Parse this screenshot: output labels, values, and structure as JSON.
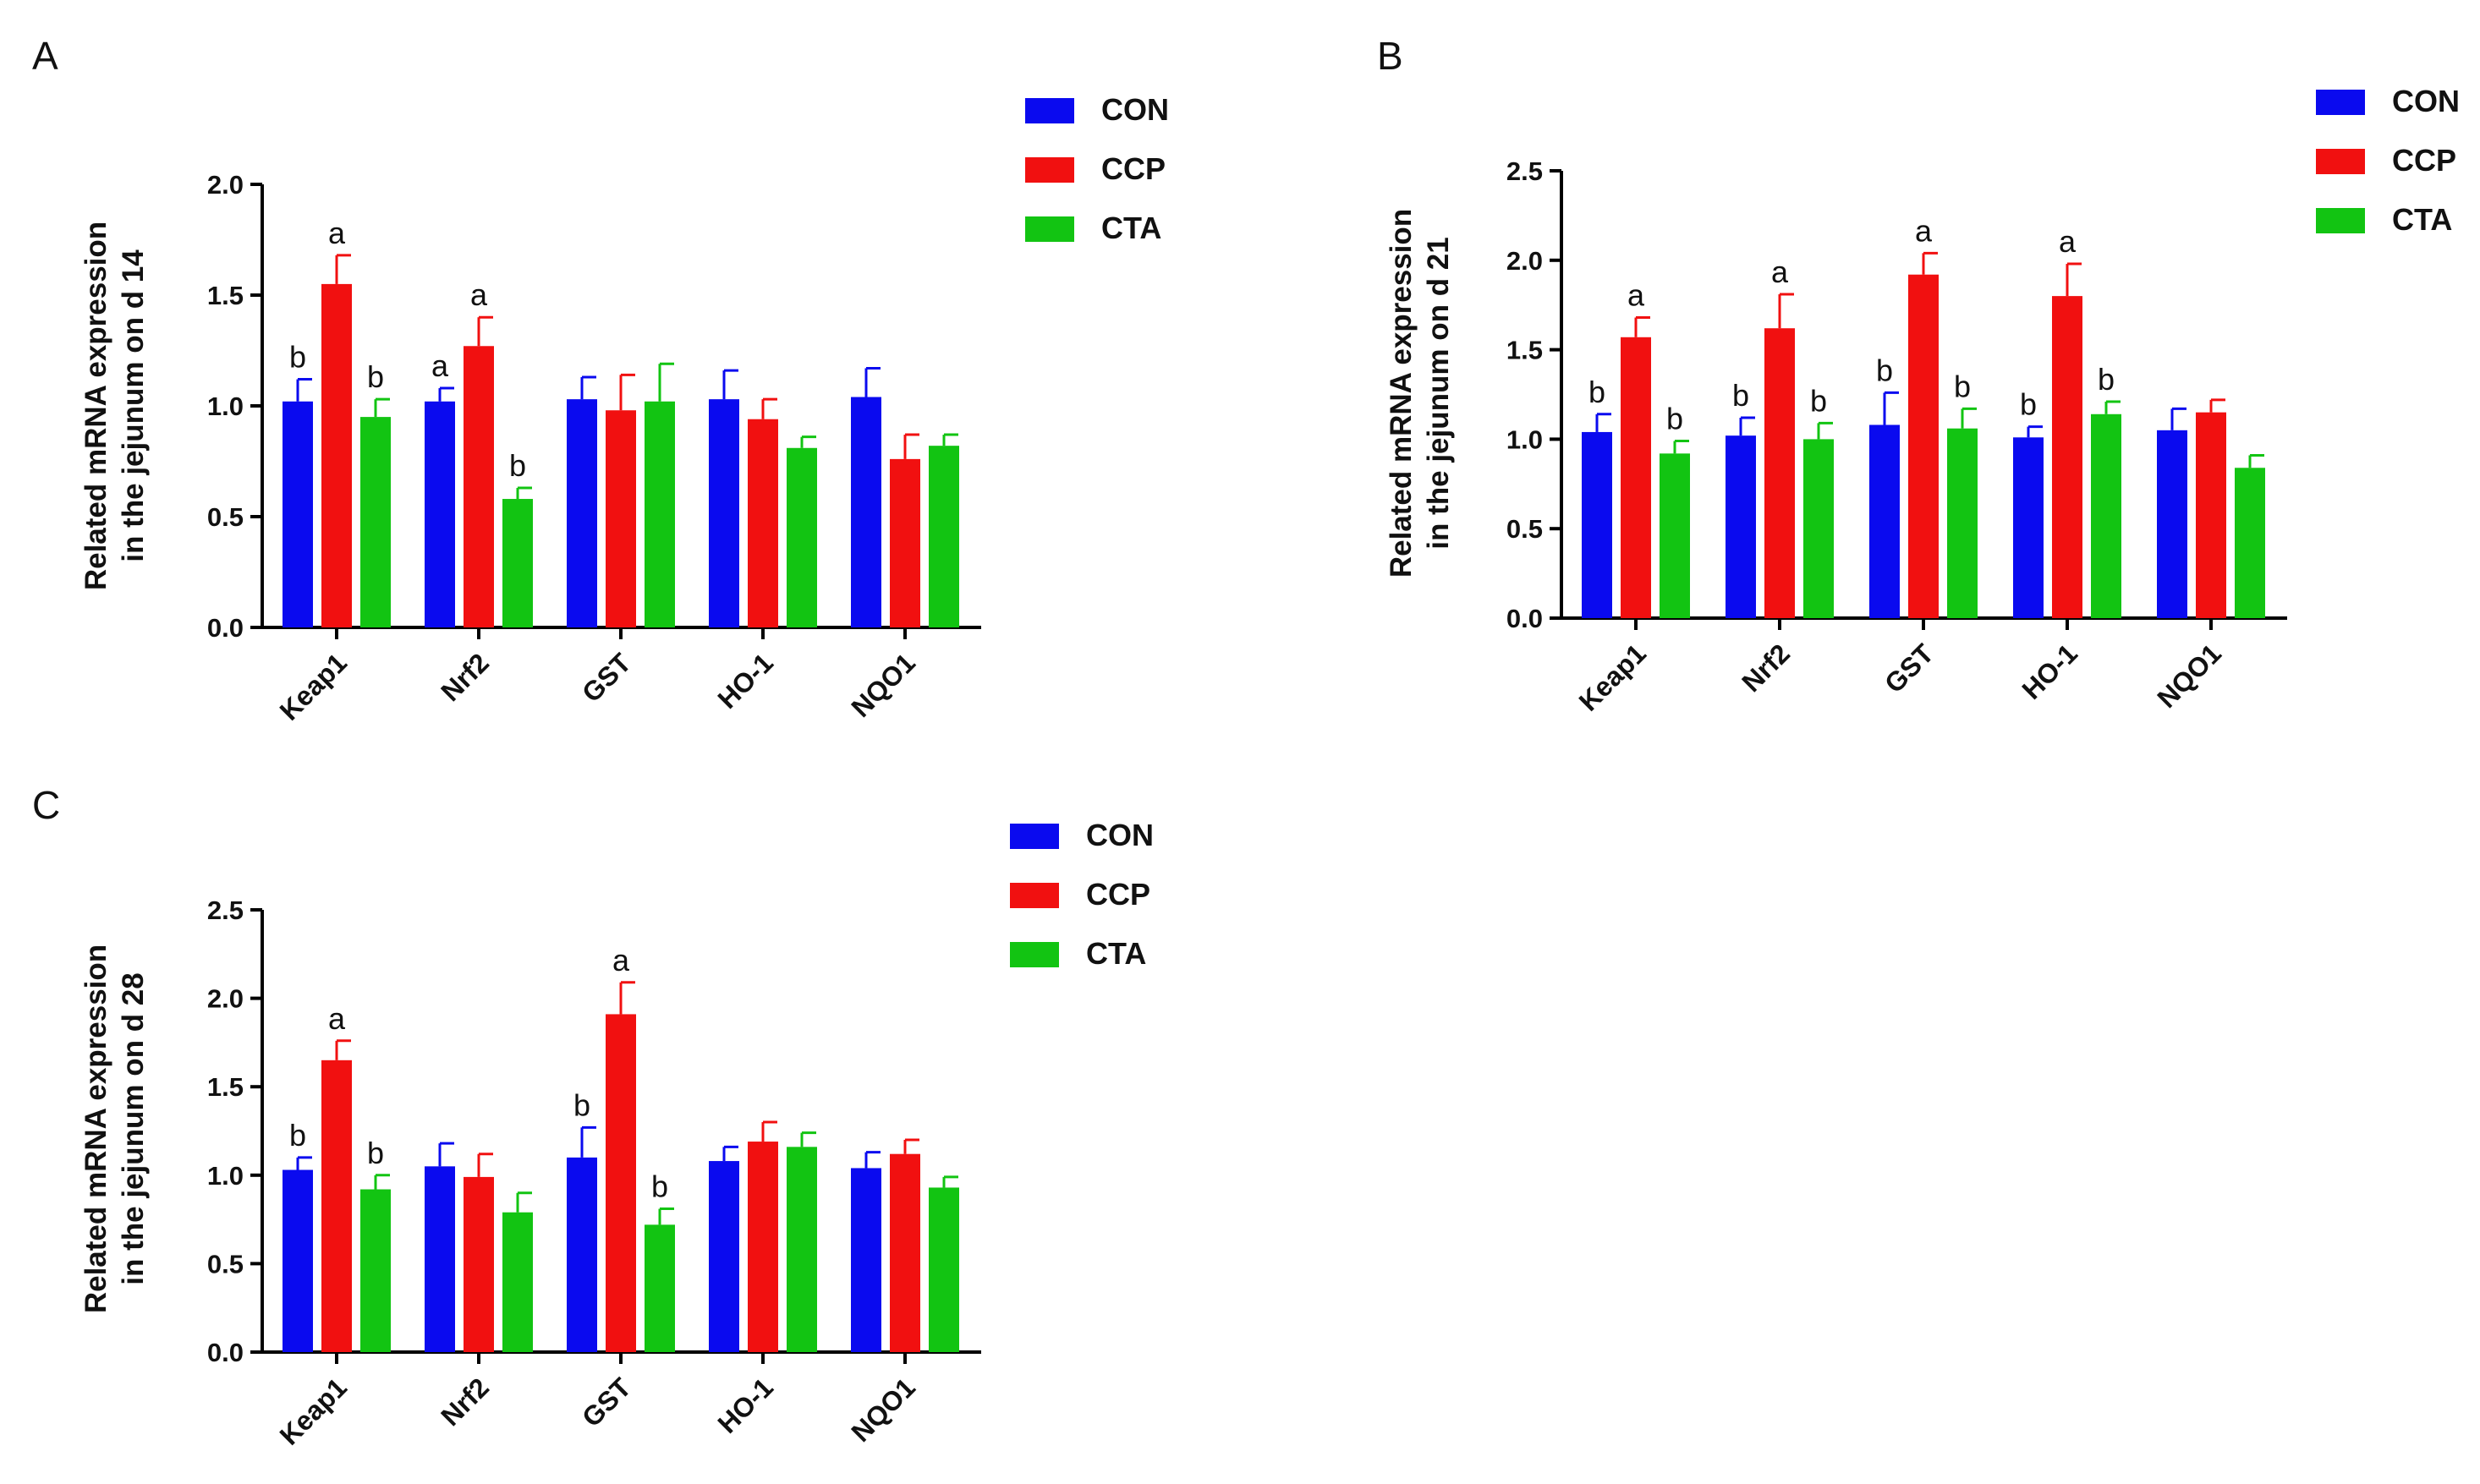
{
  "colors": {
    "CON": "#0a0aef",
    "CCP": "#f11010",
    "CTA": "#12c412",
    "axis": "#000000"
  },
  "chart_data": [
    {
      "panel": "A",
      "type": "bar",
      "ylabel": [
        "Related mRNA expression",
        "in the jejunum on d 14"
      ],
      "ylim": [
        0,
        2.0
      ],
      "yticks": [
        "0.0",
        "0.5",
        "1.0",
        "1.5",
        "2.0"
      ],
      "categories": [
        "Keap1",
        "Nrf2",
        "GST",
        "HO-1",
        "NQO1"
      ],
      "legend": [
        "CON",
        "CCP",
        "CTA"
      ],
      "series": [
        {
          "name": "CON",
          "values": [
            1.02,
            1.02,
            1.03,
            1.03,
            1.04
          ],
          "errors": [
            0.1,
            0.06,
            0.1,
            0.13,
            0.13
          ],
          "labels": [
            "b",
            "a",
            "",
            "",
            ""
          ]
        },
        {
          "name": "CCP",
          "values": [
            1.55,
            1.27,
            0.98,
            0.94,
            0.76
          ],
          "errors": [
            0.13,
            0.13,
            0.16,
            0.09,
            0.11
          ],
          "labels": [
            "a",
            "a",
            "",
            "",
            ""
          ]
        },
        {
          "name": "CTA",
          "values": [
            0.95,
            0.58,
            1.02,
            0.81,
            0.82
          ],
          "errors": [
            0.08,
            0.05,
            0.17,
            0.05,
            0.05
          ],
          "labels": [
            "b",
            "b",
            "",
            "",
            ""
          ]
        }
      ]
    },
    {
      "panel": "B",
      "type": "bar",
      "ylabel": [
        "Related mRNA expression",
        "in the jejunum on d 21"
      ],
      "ylim": [
        0,
        2.5
      ],
      "yticks": [
        "0.0",
        "0.5",
        "1.0",
        "1.5",
        "2.0",
        "2.5"
      ],
      "categories": [
        "Keap1",
        "Nrf2",
        "GST",
        "HO-1",
        "NQO1"
      ],
      "legend": [
        "CON",
        "CCP",
        "CTA"
      ],
      "series": [
        {
          "name": "CON",
          "values": [
            1.04,
            1.02,
            1.08,
            1.01,
            1.05
          ],
          "errors": [
            0.1,
            0.1,
            0.18,
            0.06,
            0.12
          ],
          "labels": [
            "b",
            "b",
            "b",
            "b",
            ""
          ]
        },
        {
          "name": "CCP",
          "values": [
            1.57,
            1.62,
            1.92,
            1.8,
            1.15
          ],
          "errors": [
            0.11,
            0.19,
            0.12,
            0.18,
            0.07
          ],
          "labels": [
            "a",
            "a",
            "a",
            "a",
            ""
          ]
        },
        {
          "name": "CTA",
          "values": [
            0.92,
            1.0,
            1.06,
            1.14,
            0.84
          ],
          "errors": [
            0.07,
            0.09,
            0.11,
            0.07,
            0.07
          ],
          "labels": [
            "b",
            "b",
            "b",
            "b",
            ""
          ]
        }
      ]
    },
    {
      "panel": "C",
      "type": "bar",
      "ylabel": [
        "Related mRNA expression",
        "in the jejunum on d 28"
      ],
      "ylim": [
        0,
        2.5
      ],
      "yticks": [
        "0.0",
        "0.5",
        "1.0",
        "1.5",
        "2.0",
        "2.5"
      ],
      "categories": [
        "Keap1",
        "Nrf2",
        "GST",
        "HO-1",
        "NQO1"
      ],
      "legend": [
        "CON",
        "CCP",
        "CTA"
      ],
      "series": [
        {
          "name": "CON",
          "values": [
            1.03,
            1.05,
            1.1,
            1.08,
            1.04
          ],
          "errors": [
            0.07,
            0.13,
            0.17,
            0.08,
            0.09
          ],
          "labels": [
            "b",
            "",
            "b",
            "",
            ""
          ]
        },
        {
          "name": "CCP",
          "values": [
            1.65,
            0.99,
            1.91,
            1.19,
            1.12
          ],
          "errors": [
            0.11,
            0.13,
            0.18,
            0.11,
            0.08
          ],
          "labels": [
            "a",
            "",
            "a",
            "",
            ""
          ]
        },
        {
          "name": "CTA",
          "values": [
            0.92,
            0.79,
            0.72,
            1.16,
            0.93
          ],
          "errors": [
            0.08,
            0.11,
            0.09,
            0.08,
            0.06
          ],
          "labels": [
            "b",
            "",
            "b",
            "",
            ""
          ]
        }
      ]
    }
  ]
}
